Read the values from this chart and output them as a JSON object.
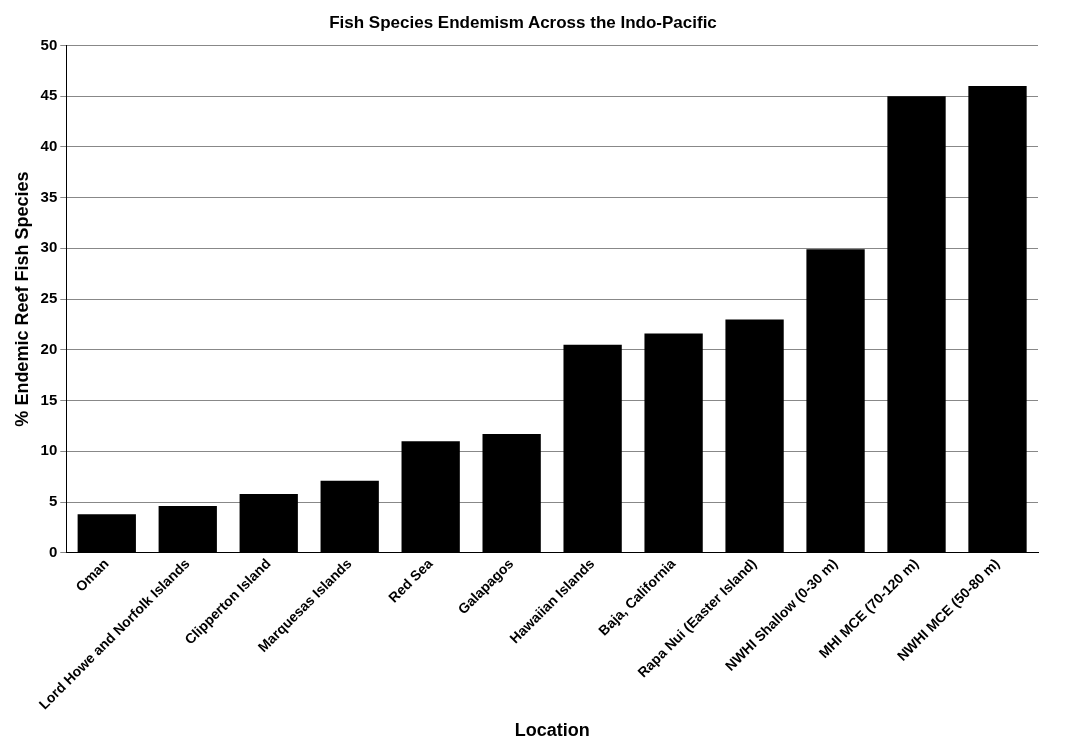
{
  "chart_data": {
    "type": "bar",
    "title": "Fish Species Endemism Across the Indo-Pacific",
    "xlabel": "Location",
    "ylabel": "% Endemic Reef Fish Species",
    "categories": [
      "Oman",
      "Lord Howe and Norfolk Islands",
      "Clipperton Island",
      "Marquesas Islands",
      "Red Sea",
      "Galapagos",
      "Hawaiian Islands",
      "Baja, California",
      "Rapa Nui (Easter Island)",
      "NWHI Shallow (0-30 m)",
      "MHI MCE (70-120 m)",
      "NWHI MCE (50-80 m)"
    ],
    "values": [
      3.8,
      4.6,
      5.8,
      7.1,
      11.0,
      11.7,
      20.5,
      21.6,
      23.0,
      29.9,
      45.0,
      46.0
    ],
    "color": "#000000",
    "ylim": [
      0,
      50
    ],
    "yticks": [
      0,
      5,
      10,
      15,
      20,
      25,
      30,
      35,
      40,
      45,
      50
    ],
    "grid": "y"
  }
}
